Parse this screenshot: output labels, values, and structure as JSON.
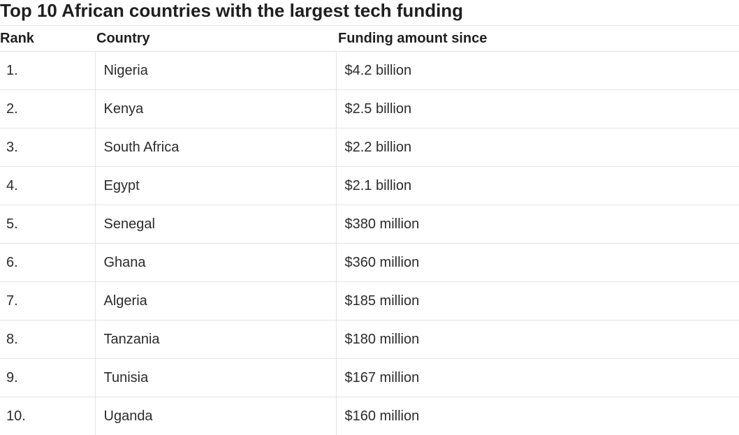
{
  "title": "Top 10 African countries with the largest tech funding",
  "table": {
    "headers": {
      "rank": "Rank",
      "country": "Country",
      "amount": "Funding amount since"
    },
    "rows": [
      {
        "rank": "1.",
        "country": "Nigeria",
        "amount": "$4.2 billion"
      },
      {
        "rank": "2.",
        "country": "Kenya",
        "amount": "$2.5 billion"
      },
      {
        "rank": "3.",
        "country": "South Africa",
        "amount": "$2.2 billion"
      },
      {
        "rank": "4.",
        "country": "Egypt",
        "amount": "$2.1 billion"
      },
      {
        "rank": "5.",
        "country": "Senegal",
        "amount": "$380 million"
      },
      {
        "rank": "6.",
        "country": "Ghana",
        "amount": "$360 million"
      },
      {
        "rank": "7.",
        "country": "Algeria",
        "amount": "$185 million"
      },
      {
        "rank": "8.",
        "country": "Tanzania",
        "amount": "$180 million"
      },
      {
        "rank": "9.",
        "country": "Tunisia",
        "amount": "$167 million"
      },
      {
        "rank": "10.",
        "country": "Uganda",
        "amount": "$160 million"
      }
    ]
  }
}
